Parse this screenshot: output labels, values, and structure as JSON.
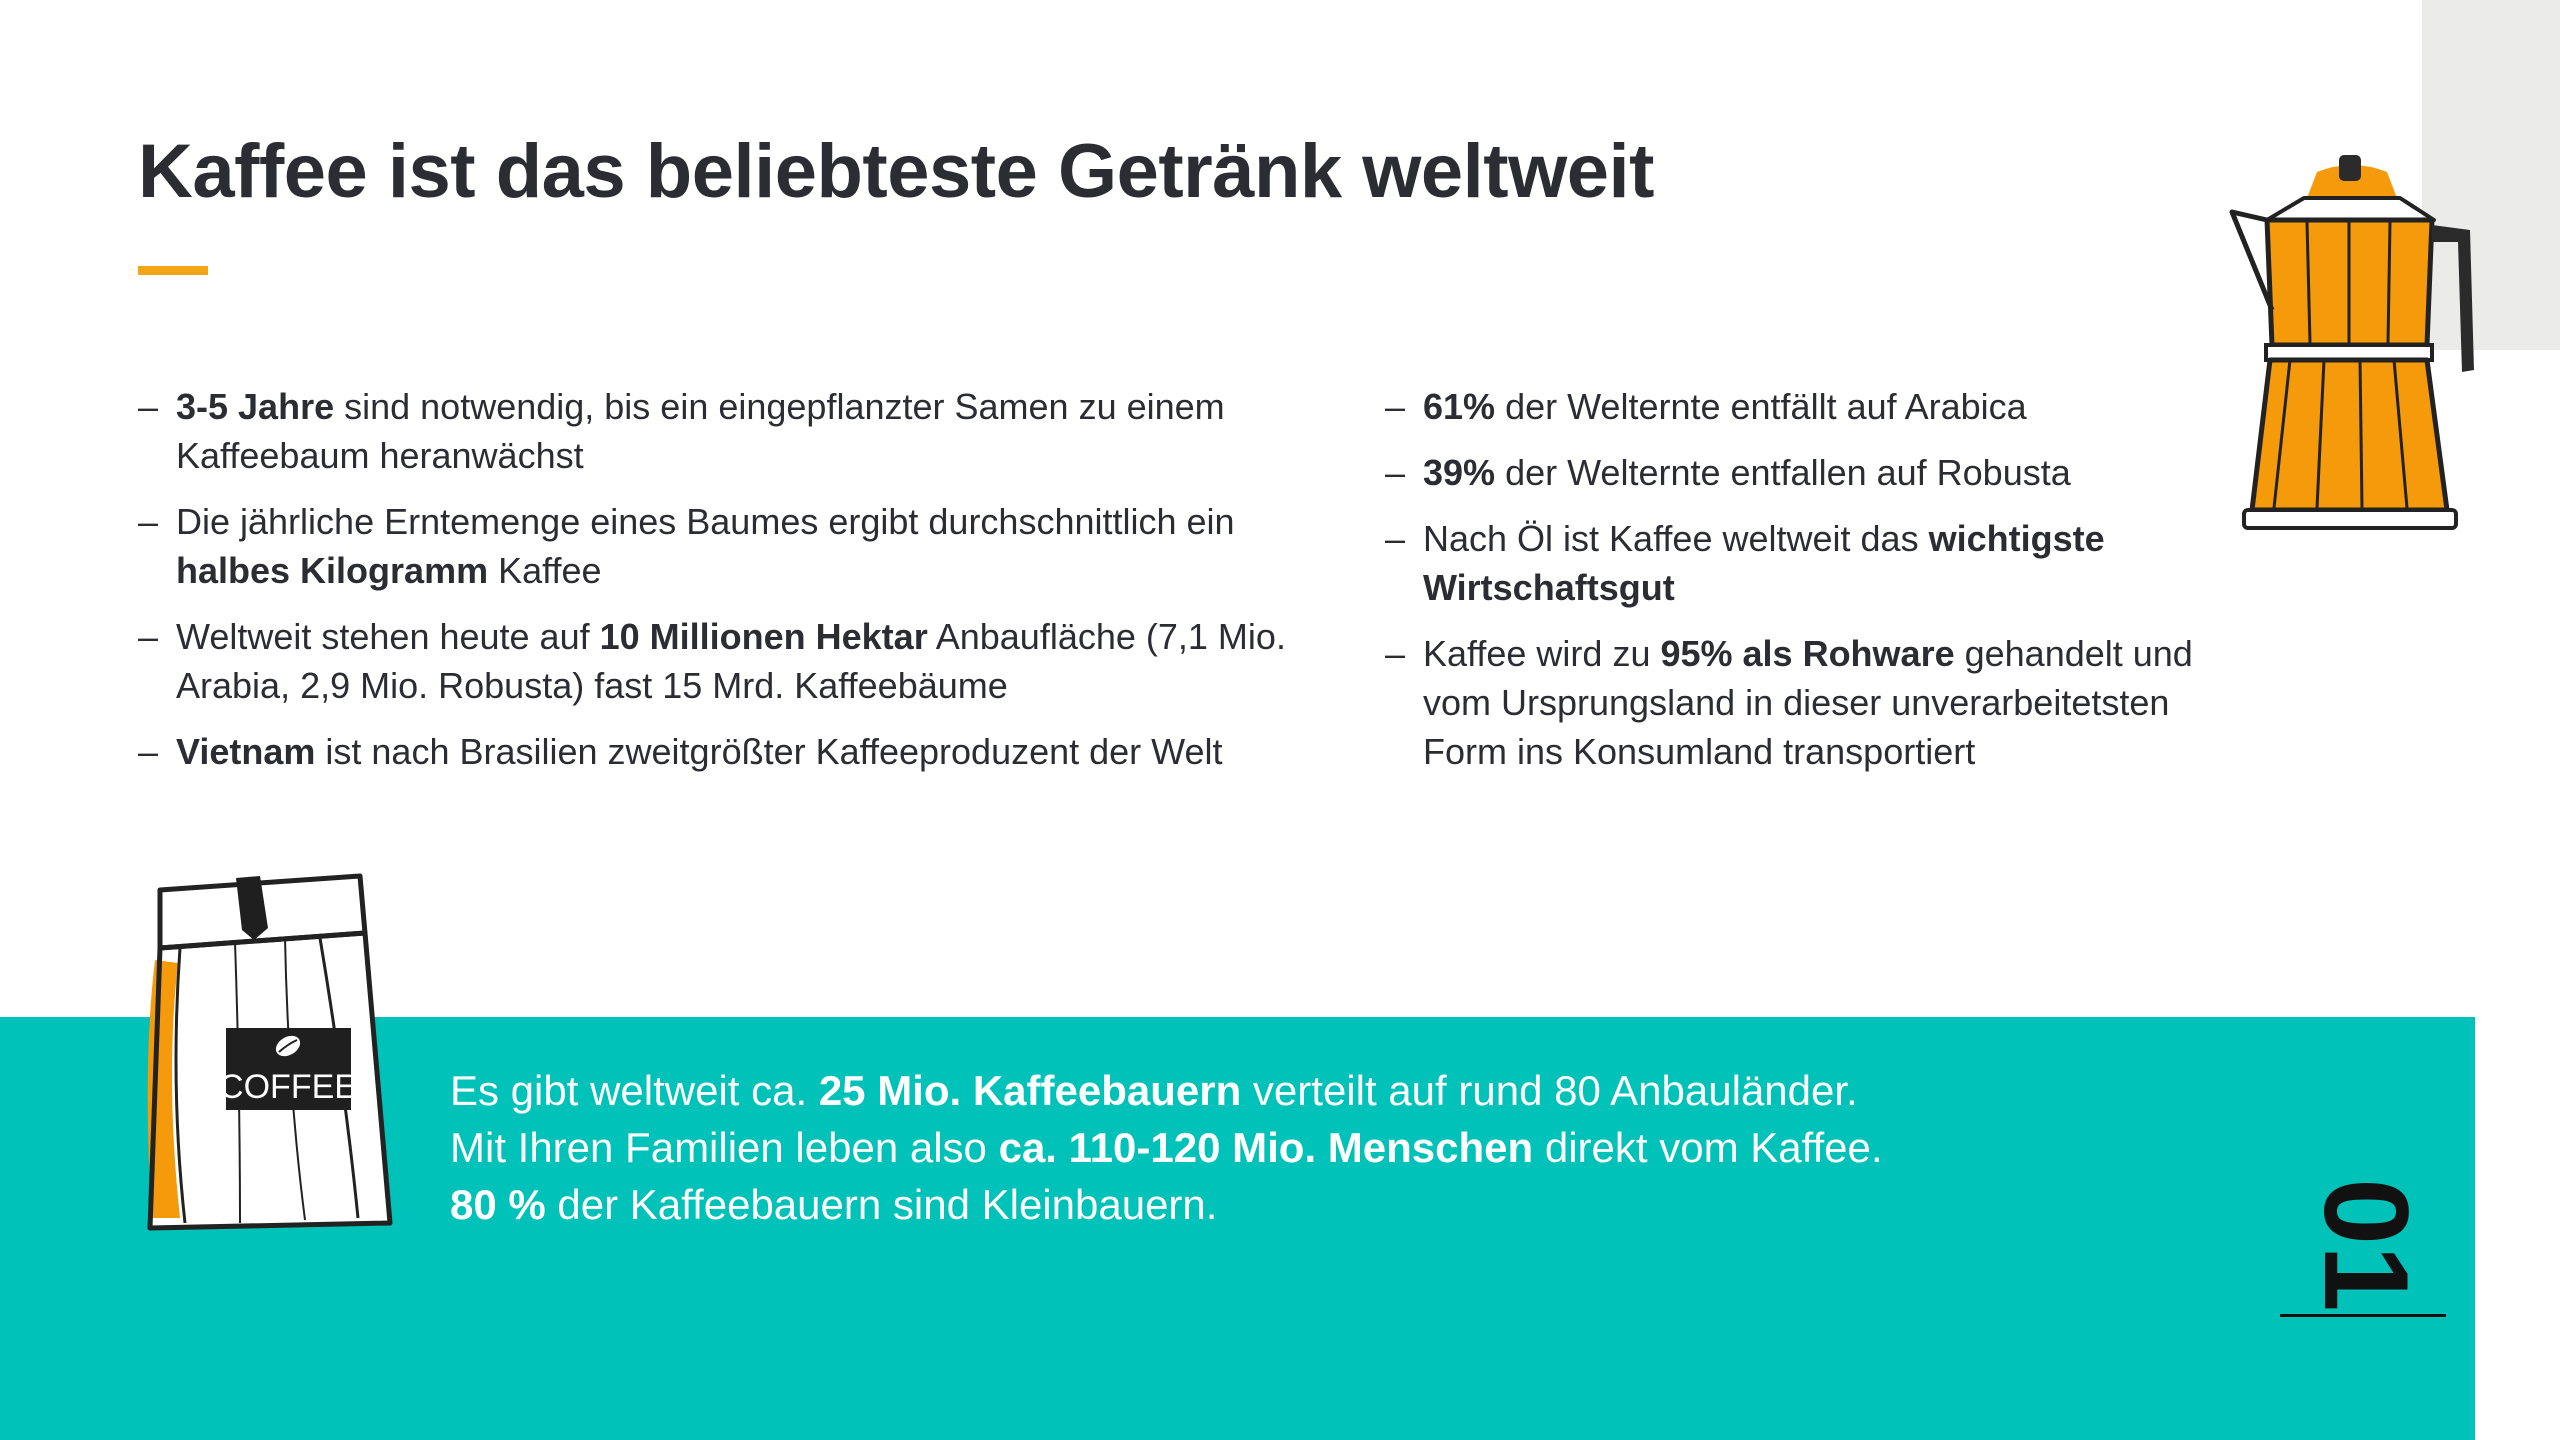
{
  "title": "Kaffee ist das beliebteste Getränk weltweit",
  "left_bullets": [
    {
      "b1": "3-5 Jahre",
      "t1": " sind notwendig, bis ein eingepflanzter Samen zu einem Kaffeebaum heranwächst"
    },
    {
      "t1": "Die jährliche Erntemenge eines Baumes ergibt durchschnittlich ein ",
      "b1": "halbes Kilogramm",
      "t2": " Kaffee"
    },
    {
      "t1": "Weltweit stehen heute auf ",
      "b1": "10 Millionen Hektar",
      "t2": " Anbaufläche (7,1 Mio. Arabia, 2,9 Mio. Robusta) fast 15 Mrd. Kaffeebäume"
    },
    {
      "b1": "Vietnam",
      "t1": " ist nach Brasilien zweitgrößter Kaffeeproduzent der Welt"
    }
  ],
  "right_bullets": [
    {
      "b1": "61%",
      "t1": " der Welternte entfällt auf Arabica"
    },
    {
      "b1": "39%",
      "t1": " der Welternte entfallen auf Robusta"
    },
    {
      "t1": "Nach Öl ist Kaffee weltweit das ",
      "b1": "wichtigste Wirtschaftsgut"
    },
    {
      "t1": "Kaffee wird zu ",
      "b1": "95% als Rohware",
      "t2": " gehandelt und vom Ursprungsland in dieser unverarbeitetsten Form ins Konsumland transportiert"
    }
  ],
  "facts": [
    {
      "t1": "Es gibt weltweit ca. ",
      "b1": "25 Mio. Kaffeebauern",
      "t2": " verteilt auf rund 80 Anbauländer."
    },
    {
      "t1": "Mit Ihren Familien leben also ",
      "b1": "ca. 110-120 Mio. Menschen",
      "t2": " direkt vom Kaffee."
    },
    {
      "b1": "80 %",
      "t1": " der Kaffeebauern sind Kleinbauern."
    }
  ],
  "bag_label": "COFFEE",
  "page_number": "01",
  "icons": {
    "pot": "moka-pot-icon",
    "bag": "coffee-bag-icon"
  },
  "colors": {
    "accent": "#f2a516",
    "teal": "#00c2b8",
    "text": "#2b2d33",
    "gray": "#ebebea"
  }
}
